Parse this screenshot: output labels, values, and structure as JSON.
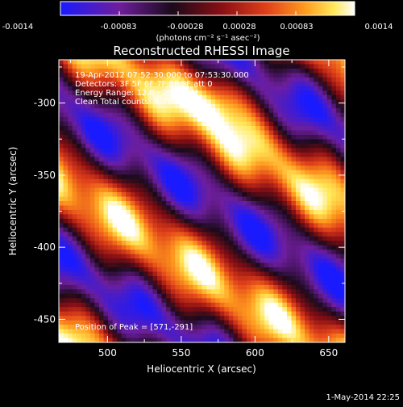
{
  "colorbar": {
    "tick_labels": [
      "-0.0014",
      "-0.00083",
      "-0.00028",
      "0.00028",
      "0.00083",
      "0.0014"
    ],
    "unit_label": "(photons cm⁻² s⁻¹ asec⁻²)",
    "range": [
      -0.0014,
      0.0014
    ],
    "colormap": [
      "#1a1aff",
      "#6e1e9c",
      "#1a0a1a",
      "#8a0f14",
      "#e0401a",
      "#ff9a1e",
      "#ffe95a",
      "#ffffff"
    ]
  },
  "chart_data": {
    "type": "heatmap",
    "title": "Reconstructed RHESSI Image",
    "xlabel": "Heliocentric X (arcsec)",
    "ylabel": "Heliocentric Y (arcsec)",
    "xlim": [
      467,
      661
    ],
    "ylim": [
      -466,
      -270
    ],
    "x_ticks": [
      500,
      550,
      600,
      650
    ],
    "y_ticks": [
      -300,
      -350,
      -400,
      -450
    ],
    "peak_position": [
      571,
      -291
    ],
    "annotations": [
      "19-Apr-2012 07:52:30.000 to 07:53:30.000",
      "Detectors: 3F 5F 6F 7F 8F 9F  att 0",
      "Energy Range: 12.0 - 25.0 keV",
      "Clean     Total counts: 6.75e+04",
      "Position of Peak = [571,-291]"
    ]
  },
  "footer": {
    "timestamp": "1-May-2014 22:25"
  }
}
